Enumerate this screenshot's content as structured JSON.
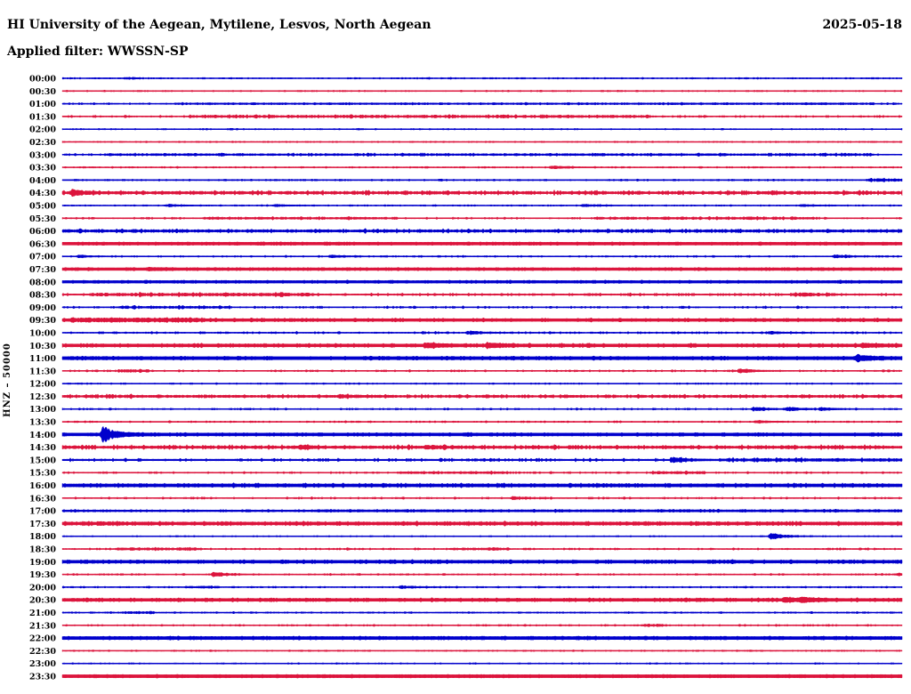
{
  "chart_data": {
    "type": "line",
    "subtype": "helicorder_dayplot",
    "title": "HI University of the Aegean, Mytilene, Lesvos, North Aegean",
    "date": "2025-05-18",
    "filter_line": "Applied filter: WWSSN-SP",
    "ylabel": "HNZ – 50000",
    "minutes_per_row": 30,
    "grid": false,
    "legend_position": "none",
    "colors": {
      "blue": "#0000CC",
      "red": "#DC143C",
      "text": "#000000",
      "background": "#FFFFFF"
    },
    "rows": [
      {
        "time": "00:00",
        "color": "blue",
        "base": 0.5,
        "noise": 0.25,
        "bursts": [
          [
            2.2,
            2.8,
            0.8
          ]
        ],
        "events": []
      },
      {
        "time": "00:30",
        "color": "red",
        "base": 0.5,
        "noise": 0.2,
        "bursts": [],
        "events": []
      },
      {
        "time": "01:00",
        "color": "blue",
        "base": 0.5,
        "noise": 0.35,
        "bursts": [
          [
            4,
            29,
            0.5
          ]
        ],
        "events": []
      },
      {
        "time": "01:30",
        "color": "red",
        "base": 0.5,
        "noise": 0.45,
        "bursts": [
          [
            4.5,
            21,
            1.1
          ]
        ],
        "events": []
      },
      {
        "time": "02:00",
        "color": "blue",
        "base": 0.5,
        "noise": 0.2,
        "bursts": [],
        "events": []
      },
      {
        "time": "02:30",
        "color": "red",
        "base": 0.5,
        "noise": 0.2,
        "bursts": [],
        "events": []
      },
      {
        "time": "03:00",
        "color": "blue",
        "base": 0.5,
        "noise": 0.45,
        "bursts": [
          [
            1.5,
            29,
            0.7
          ]
        ],
        "events": []
      },
      {
        "time": "03:30",
        "color": "red",
        "base": 0.5,
        "noise": 0.25,
        "bursts": [],
        "events": [
          [
            17.5,
            1.6
          ]
        ]
      },
      {
        "time": "04:00",
        "color": "blue",
        "base": 0.55,
        "noise": 0.3,
        "bursts": [
          [
            28.7,
            30,
            1.4
          ]
        ],
        "events": []
      },
      {
        "time": "04:30",
        "color": "red",
        "base": 0.7,
        "noise": 0.7,
        "bursts": [
          [
            0,
            30,
            0.9
          ]
        ],
        "events": [
          [
            0.35,
            3
          ]
        ]
      },
      {
        "time": "05:00",
        "color": "blue",
        "base": 0.5,
        "noise": 0.25,
        "bursts": [],
        "events": [
          [
            3.8,
            1.2
          ],
          [
            7.6,
            1.0
          ],
          [
            18.6,
            1.0
          ],
          [
            26.4,
            0.9
          ]
        ]
      },
      {
        "time": "05:30",
        "color": "red",
        "base": 0.5,
        "noise": 0.4,
        "bursts": [
          [
            5,
            12,
            0.8
          ],
          [
            19,
            27,
            0.8
          ]
        ],
        "events": []
      },
      {
        "time": "06:00",
        "color": "blue",
        "base": 0.7,
        "noise": 0.6,
        "bursts": [
          [
            0,
            30,
            0.8
          ]
        ],
        "events": []
      },
      {
        "time": "06:30",
        "color": "red",
        "base": 1.5,
        "noise": 0.25,
        "bursts": [],
        "events": []
      },
      {
        "time": "07:00",
        "color": "blue",
        "base": 0.5,
        "noise": 0.3,
        "bursts": [],
        "events": [
          [
            0.6,
            1.1
          ],
          [
            9.6,
            1.4
          ],
          [
            27.6,
            1.5
          ]
        ]
      },
      {
        "time": "07:30",
        "color": "red",
        "base": 1.4,
        "noise": 0.25,
        "bursts": [],
        "events": [
          [
            3.1,
            1.0
          ]
        ]
      },
      {
        "time": "08:00",
        "color": "blue",
        "base": 1.3,
        "noise": 0.3,
        "bursts": [],
        "events": []
      },
      {
        "time": "08:30",
        "color": "red",
        "base": 0.6,
        "noise": 0.55,
        "bursts": [
          [
            1,
            9,
            1.3
          ],
          [
            26,
            27.6,
            1.4
          ]
        ],
        "events": []
      },
      {
        "time": "09:00",
        "color": "blue",
        "base": 0.5,
        "noise": 0.45,
        "bursts": [
          [
            2,
            6,
            0.9
          ]
        ],
        "events": []
      },
      {
        "time": "09:30",
        "color": "red",
        "base": 1.4,
        "noise": 0.4,
        "bursts": [
          [
            0.3,
            5,
            1.2
          ]
        ],
        "events": []
      },
      {
        "time": "10:00",
        "color": "blue",
        "base": 0.5,
        "noise": 0.45,
        "bursts": [],
        "events": [
          [
            14.5,
            2.2
          ],
          [
            25.3,
            1.4
          ]
        ]
      },
      {
        "time": "10:30",
        "color": "red",
        "base": 1.5,
        "noise": 0.45,
        "bursts": [],
        "events": [
          [
            13,
            2
          ],
          [
            15.2,
            2
          ],
          [
            28.6,
            1.8
          ]
        ]
      },
      {
        "time": "11:00",
        "color": "blue",
        "base": 1.6,
        "noise": 0.35,
        "bursts": [],
        "events": [
          [
            28.4,
            2.8
          ]
        ]
      },
      {
        "time": "11:30",
        "color": "red",
        "base": 0.5,
        "noise": 0.35,
        "bursts": [
          [
            2,
            3.1,
            1.3
          ]
        ],
        "events": [
          [
            24.2,
            2.6
          ]
        ]
      },
      {
        "time": "12:00",
        "color": "blue",
        "base": 0.5,
        "noise": 0.25,
        "bursts": [],
        "events": []
      },
      {
        "time": "12:30",
        "color": "red",
        "base": 0.65,
        "noise": 0.6,
        "bursts": [
          [
            0,
            30,
            0.7
          ]
        ],
        "events": [
          [
            9.9,
            1.6
          ]
        ]
      },
      {
        "time": "13:00",
        "color": "blue",
        "base": 0.5,
        "noise": 0.35,
        "bursts": [],
        "events": [
          [
            24.7,
            2.1
          ],
          [
            25.9,
            2.1
          ],
          [
            27.1,
            1.4
          ]
        ]
      },
      {
        "time": "13:30",
        "color": "red",
        "base": 0.5,
        "noise": 0.3,
        "bursts": [],
        "events": [
          [
            24.8,
            1.3
          ]
        ]
      },
      {
        "time": "14:00",
        "color": "blue",
        "base": 1.5,
        "noise": 0.35,
        "bursts": [],
        "events": [
          [
            1.45,
            8
          ]
        ]
      },
      {
        "time": "14:30",
        "color": "red",
        "base": 0.7,
        "noise": 0.7,
        "bursts": [
          [
            0,
            30,
            0.9
          ]
        ],
        "events": [
          [
            8.5,
            1.8
          ],
          [
            13,
            1.6
          ]
        ]
      },
      {
        "time": "15:00",
        "color": "blue",
        "base": 0.75,
        "noise": 0.6,
        "bursts": [
          [
            23.5,
            30,
            1.0
          ]
        ],
        "events": [
          [
            21.8,
            3.2
          ]
        ]
      },
      {
        "time": "15:30",
        "color": "red",
        "base": 0.5,
        "noise": 0.4,
        "bursts": [
          [
            12,
            16,
            0.8
          ],
          [
            21,
            23,
            1.0
          ]
        ],
        "events": []
      },
      {
        "time": "16:00",
        "color": "blue",
        "base": 1.5,
        "noise": 0.55,
        "bursts": [],
        "events": []
      },
      {
        "time": "16:30",
        "color": "red",
        "base": 0.5,
        "noise": 0.4,
        "bursts": [],
        "events": [
          [
            16.1,
            1.5
          ]
        ]
      },
      {
        "time": "17:00",
        "color": "blue",
        "base": 0.85,
        "noise": 0.35,
        "bursts": [
          [
            9,
            30,
            0.45
          ]
        ],
        "events": []
      },
      {
        "time": "17:30",
        "color": "red",
        "base": 1.3,
        "noise": 0.5,
        "bursts": [
          [
            0,
            30,
            0.5
          ]
        ],
        "events": []
      },
      {
        "time": "18:00",
        "color": "blue",
        "base": 0.5,
        "noise": 0.2,
        "bursts": [],
        "events": [
          [
            25.3,
            3.4
          ]
        ]
      },
      {
        "time": "18:30",
        "color": "red",
        "base": 0.5,
        "noise": 0.4,
        "bursts": [
          [
            2,
            5,
            0.9
          ],
          [
            13.8,
            16,
            0.9
          ]
        ],
        "events": []
      },
      {
        "time": "19:00",
        "color": "blue",
        "base": 1.5,
        "noise": 0.4,
        "bursts": [],
        "events": []
      },
      {
        "time": "19:30",
        "color": "red",
        "base": 0.5,
        "noise": 0.3,
        "bursts": [],
        "events": [
          [
            5.4,
            2.4
          ],
          [
            29.9,
            1.4
          ]
        ]
      },
      {
        "time": "20:00",
        "color": "blue",
        "base": 0.5,
        "noise": 0.3,
        "bursts": [
          [
            4.4,
            5.6,
            0.9
          ]
        ],
        "events": [
          [
            12.1,
            1.4
          ]
        ]
      },
      {
        "time": "20:30",
        "color": "red",
        "base": 1.5,
        "noise": 0.4,
        "bursts": [],
        "events": [
          [
            25.8,
            1.9
          ],
          [
            26.4,
            1.7
          ]
        ]
      },
      {
        "time": "21:00",
        "color": "blue",
        "base": 0.5,
        "noise": 0.3,
        "bursts": [
          [
            2.2,
            3.3,
            1.1
          ]
        ],
        "events": []
      },
      {
        "time": "21:30",
        "color": "red",
        "base": 0.5,
        "noise": 0.3,
        "bursts": [
          [
            20.7,
            21.6,
            1.1
          ]
        ],
        "events": []
      },
      {
        "time": "22:00",
        "color": "blue",
        "base": 1.6,
        "noise": 0.3,
        "bursts": [],
        "events": []
      },
      {
        "time": "22:30",
        "color": "red",
        "base": 0.5,
        "noise": 0.2,
        "bursts": [],
        "events": []
      },
      {
        "time": "23:00",
        "color": "blue",
        "base": 0.5,
        "noise": 0.2,
        "bursts": [],
        "events": []
      },
      {
        "time": "23:30",
        "color": "red",
        "base": 1.6,
        "noise": 0.2,
        "bursts": [],
        "events": []
      }
    ]
  }
}
